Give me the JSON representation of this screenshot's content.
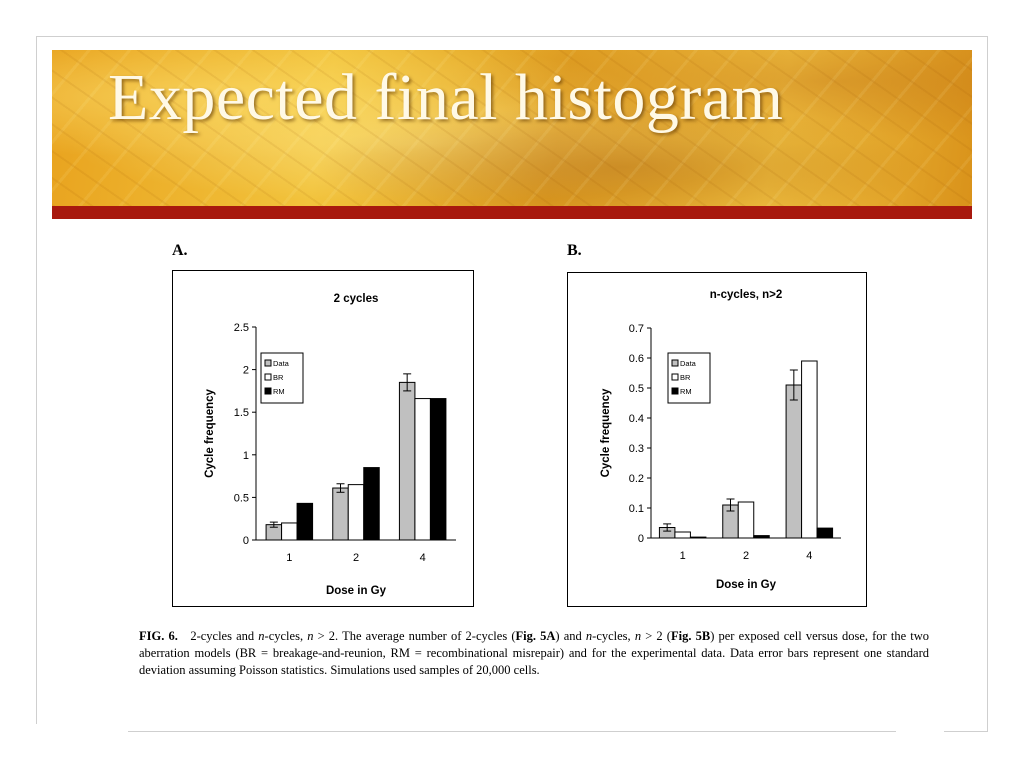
{
  "slide": {
    "title": "Expected final histogram"
  },
  "figure": {
    "panel_a_letter": "A.",
    "panel_b_letter": "B.",
    "caption": {
      "fig_label": "FIG. 6.",
      "p1": "2-cycles and ",
      "n1": "n",
      "p2": "-cycles, ",
      "n2": "n",
      "p3": " > 2. The average number of 2-cycles (",
      "ref_a": "Fig. 5A",
      "p4": ") and ",
      "n3": "n",
      "p5": "-cycles, ",
      "n4": "n",
      "p6": " > 2 (",
      "ref_b": "Fig. 5B",
      "p7": ") per exposed cell versus dose, for the two aberration models (BR = breakage-and-reunion, RM = recombinational misrepair) and for the experimental data. Data error bars represent one standard deviation assuming Poisson statistics. Simulations used samples of 20,000 cells."
    }
  },
  "chart_data": [
    {
      "type": "bar",
      "title": "2 cycles",
      "xlabel": "Dose in Gy",
      "ylabel": "Cycle frequency",
      "categories": [
        "1",
        "2",
        "4"
      ],
      "ylim": [
        0,
        2.5
      ],
      "yticks": [
        "0",
        "0.5",
        "1",
        "1.5",
        "2",
        "2.5"
      ],
      "legend_position": "top-left",
      "grid": false,
      "series": [
        {
          "name": "Data",
          "color": "#c0c0c0",
          "values": [
            0.18,
            0.61,
            1.85
          ],
          "errors": [
            0.03,
            0.05,
            0.1
          ]
        },
        {
          "name": "BR",
          "color": "#ffffff",
          "values": [
            0.2,
            0.65,
            1.66
          ]
        },
        {
          "name": "RM",
          "color": "#000000",
          "values": [
            0.43,
            0.85,
            1.66
          ]
        }
      ]
    },
    {
      "type": "bar",
      "title": "n-cycles, n>2",
      "xlabel": "Dose in Gy",
      "ylabel": "Cycle frequency",
      "categories": [
        "1",
        "2",
        "4"
      ],
      "ylim": [
        0,
        0.7
      ],
      "yticks": [
        "0",
        "0.1",
        "0.2",
        "0.3",
        "0.4",
        "0.5",
        "0.6",
        "0.7"
      ],
      "legend_position": "top-left",
      "grid": false,
      "series": [
        {
          "name": "Data",
          "color": "#c0c0c0",
          "values": [
            0.035,
            0.11,
            0.51
          ],
          "errors": [
            0.012,
            0.02,
            0.05
          ]
        },
        {
          "name": "BR",
          "color": "#ffffff",
          "values": [
            0.02,
            0.12,
            0.59
          ]
        },
        {
          "name": "RM",
          "color": "#000000",
          "values": [
            0.003,
            0.008,
            0.033
          ]
        }
      ]
    }
  ]
}
